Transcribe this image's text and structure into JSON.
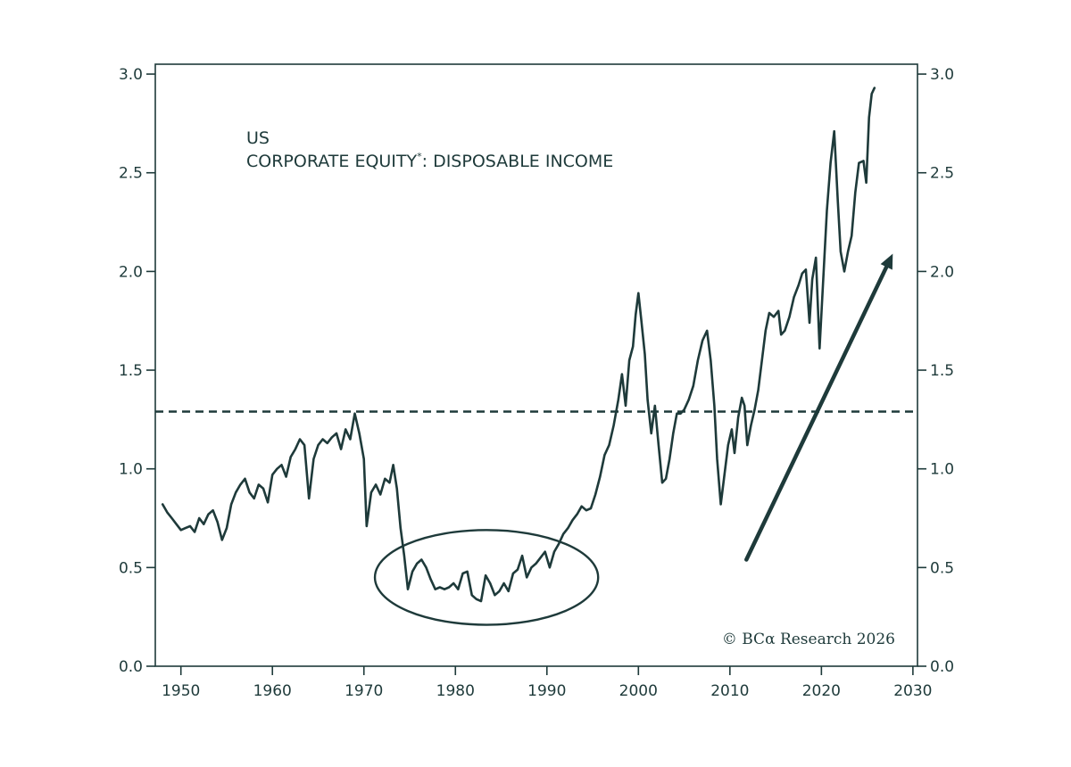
{
  "colors": {
    "ink": "#1e3a3a",
    "accent": "#1aa784",
    "background": "#ffffff"
  },
  "chart_data": {
    "type": "line",
    "title": "US",
    "subtitle": "CORPORATE EQUITY",
    "subtitle_mark": "*",
    "subtitle_rest": ": DISPOSABLE INCOME",
    "xlabel": "",
    "ylabel": "",
    "xlim": [
      1947.2,
      2030.5
    ],
    "ylim": [
      0,
      3.05
    ],
    "x_ticks": [
      1950,
      1960,
      1970,
      1980,
      1990,
      2000,
      2010,
      2020,
      2030
    ],
    "x_tick_labels": [
      "1950",
      "1960",
      "1970",
      "1980",
      "1990",
      "2000",
      "2010",
      "2020",
      "2030"
    ],
    "y_ticks": [
      0,
      0.5,
      1,
      1.5,
      2,
      2.5,
      3
    ],
    "y_tick_labels": [
      "0.0",
      "0.5",
      "1.0",
      "1.5",
      "2.0",
      "2.5",
      "3.0"
    ],
    "right_axis": true,
    "grid": false,
    "reference_line": {
      "y": 1.29,
      "style": "dashed"
    },
    "annotations": [
      {
        "kind": "ellipse",
        "x_range": [
          1971.2,
          1995.6
        ],
        "y_range": [
          0.21,
          0.69
        ]
      },
      {
        "kind": "arrow",
        "from": [
          2011.8,
          0.54
        ],
        "to": [
          2027.8,
          2.09
        ]
      }
    ],
    "credit": "© BCα Research 2026",
    "series": [
      {
        "values": [
          [
            1948.0,
            0.82
          ],
          [
            1948.5,
            0.78
          ],
          [
            1949.0,
            0.75
          ],
          [
            1949.5,
            0.72
          ],
          [
            1950.0,
            0.69
          ],
          [
            1950.5,
            0.7
          ],
          [
            1951.0,
            0.71
          ],
          [
            1951.5,
            0.68
          ],
          [
            1952.0,
            0.75
          ],
          [
            1952.5,
            0.72
          ],
          [
            1953.0,
            0.77
          ],
          [
            1953.5,
            0.79
          ],
          [
            1954.0,
            0.73
          ],
          [
            1954.5,
            0.64
          ],
          [
            1955.0,
            0.7
          ],
          [
            1955.5,
            0.82
          ],
          [
            1956.0,
            0.88
          ],
          [
            1956.5,
            0.92
          ],
          [
            1957.0,
            0.95
          ],
          [
            1957.5,
            0.88
          ],
          [
            1958.0,
            0.85
          ],
          [
            1958.5,
            0.92
          ],
          [
            1959.0,
            0.9
          ],
          [
            1959.5,
            0.83
          ],
          [
            1960.0,
            0.97
          ],
          [
            1960.5,
            1.0
          ],
          [
            1961.0,
            1.02
          ],
          [
            1961.5,
            0.96
          ],
          [
            1962.0,
            1.06
          ],
          [
            1962.5,
            1.1
          ],
          [
            1963.0,
            1.15
          ],
          [
            1963.5,
            1.12
          ],
          [
            1964.0,
            0.85
          ],
          [
            1964.5,
            1.05
          ],
          [
            1965.0,
            1.12
          ],
          [
            1965.5,
            1.15
          ],
          [
            1966.0,
            1.13
          ],
          [
            1966.5,
            1.16
          ],
          [
            1967.0,
            1.18
          ],
          [
            1967.5,
            1.1
          ],
          [
            1968.0,
            1.2
          ],
          [
            1968.5,
            1.15
          ],
          [
            1969.0,
            1.28
          ],
          [
            1969.5,
            1.18
          ],
          [
            1970.0,
            1.05
          ],
          [
            1970.3,
            0.71
          ],
          [
            1970.8,
            0.88
          ],
          [
            1971.3,
            0.92
          ],
          [
            1971.8,
            0.87
          ],
          [
            1972.3,
            0.95
          ],
          [
            1972.8,
            0.93
          ],
          [
            1973.2,
            1.02
          ],
          [
            1973.6,
            0.9
          ],
          [
            1974.0,
            0.7
          ],
          [
            1974.4,
            0.56
          ],
          [
            1974.8,
            0.39
          ],
          [
            1975.3,
            0.48
          ],
          [
            1975.8,
            0.52
          ],
          [
            1976.3,
            0.54
          ],
          [
            1976.8,
            0.5
          ],
          [
            1977.3,
            0.44
          ],
          [
            1977.8,
            0.39
          ],
          [
            1978.3,
            0.4
          ],
          [
            1978.8,
            0.39
          ],
          [
            1979.3,
            0.4
          ],
          [
            1979.8,
            0.42
          ],
          [
            1980.3,
            0.39
          ],
          [
            1980.8,
            0.47
          ],
          [
            1981.3,
            0.48
          ],
          [
            1981.8,
            0.36
          ],
          [
            1982.3,
            0.34
          ],
          [
            1982.8,
            0.33
          ],
          [
            1983.3,
            0.46
          ],
          [
            1983.8,
            0.42
          ],
          [
            1984.3,
            0.36
          ],
          [
            1984.8,
            0.38
          ],
          [
            1985.3,
            0.42
          ],
          [
            1985.8,
            0.38
          ],
          [
            1986.3,
            0.47
          ],
          [
            1986.8,
            0.49
          ],
          [
            1987.3,
            0.56
          ],
          [
            1987.8,
            0.45
          ],
          [
            1988.3,
            0.5
          ],
          [
            1988.8,
            0.52
          ],
          [
            1989.3,
            0.55
          ],
          [
            1989.8,
            0.58
          ],
          [
            1990.3,
            0.5
          ],
          [
            1990.8,
            0.58
          ],
          [
            1991.3,
            0.62
          ],
          [
            1991.8,
            0.67
          ],
          [
            1992.3,
            0.7
          ],
          [
            1992.8,
            0.74
          ],
          [
            1993.3,
            0.77
          ],
          [
            1993.8,
            0.81
          ],
          [
            1994.3,
            0.79
          ],
          [
            1994.8,
            0.8
          ],
          [
            1995.3,
            0.87
          ],
          [
            1995.8,
            0.96
          ],
          [
            1996.3,
            1.07
          ],
          [
            1996.8,
            1.12
          ],
          [
            1997.3,
            1.22
          ],
          [
            1997.8,
            1.35
          ],
          [
            1998.2,
            1.48
          ],
          [
            1998.6,
            1.32
          ],
          [
            1999.0,
            1.55
          ],
          [
            1999.4,
            1.62
          ],
          [
            1999.7,
            1.78
          ],
          [
            2000.0,
            1.89
          ],
          [
            2000.3,
            1.76
          ],
          [
            2000.7,
            1.58
          ],
          [
            2001.0,
            1.35
          ],
          [
            2001.4,
            1.18
          ],
          [
            2001.8,
            1.32
          ],
          [
            2002.2,
            1.12
          ],
          [
            2002.6,
            0.93
          ],
          [
            2003.0,
            0.95
          ],
          [
            2003.4,
            1.05
          ],
          [
            2003.8,
            1.18
          ],
          [
            2004.2,
            1.28
          ],
          [
            2004.6,
            1.28
          ],
          [
            2005.0,
            1.3
          ],
          [
            2005.5,
            1.35
          ],
          [
            2006.0,
            1.42
          ],
          [
            2006.5,
            1.55
          ],
          [
            2007.0,
            1.65
          ],
          [
            2007.5,
            1.7
          ],
          [
            2007.9,
            1.55
          ],
          [
            2008.3,
            1.32
          ],
          [
            2008.6,
            1.05
          ],
          [
            2009.0,
            0.82
          ],
          [
            2009.4,
            0.97
          ],
          [
            2009.8,
            1.12
          ],
          [
            2010.2,
            1.2
          ],
          [
            2010.5,
            1.08
          ],
          [
            2010.9,
            1.26
          ],
          [
            2011.3,
            1.36
          ],
          [
            2011.6,
            1.32
          ],
          [
            2011.9,
            1.12
          ],
          [
            2012.3,
            1.22
          ],
          [
            2012.7,
            1.3
          ],
          [
            2013.1,
            1.4
          ],
          [
            2013.5,
            1.55
          ],
          [
            2013.9,
            1.7
          ],
          [
            2014.3,
            1.79
          ],
          [
            2014.8,
            1.77
          ],
          [
            2015.3,
            1.8
          ],
          [
            2015.6,
            1.68
          ],
          [
            2016.0,
            1.7
          ],
          [
            2016.5,
            1.77
          ],
          [
            2017.0,
            1.87
          ],
          [
            2017.5,
            1.93
          ],
          [
            2017.9,
            1.99
          ],
          [
            2018.3,
            2.01
          ],
          [
            2018.7,
            1.74
          ],
          [
            2019.0,
            1.96
          ],
          [
            2019.4,
            2.07
          ],
          [
            2019.8,
            1.61
          ],
          [
            2020.2,
            1.96
          ],
          [
            2020.6,
            2.31
          ],
          [
            2021.0,
            2.55
          ],
          [
            2021.4,
            2.71
          ],
          [
            2021.8,
            2.35
          ],
          [
            2022.1,
            2.1
          ],
          [
            2022.5,
            2.0
          ],
          [
            2022.9,
            2.1
          ],
          [
            2023.3,
            2.18
          ],
          [
            2023.7,
            2.4
          ],
          [
            2024.1,
            2.55
          ],
          [
            2024.6,
            2.56
          ],
          [
            2024.9,
            2.45
          ],
          [
            2025.2,
            2.78
          ],
          [
            2025.5,
            2.9
          ],
          [
            2025.8,
            2.93
          ]
        ]
      }
    ]
  }
}
